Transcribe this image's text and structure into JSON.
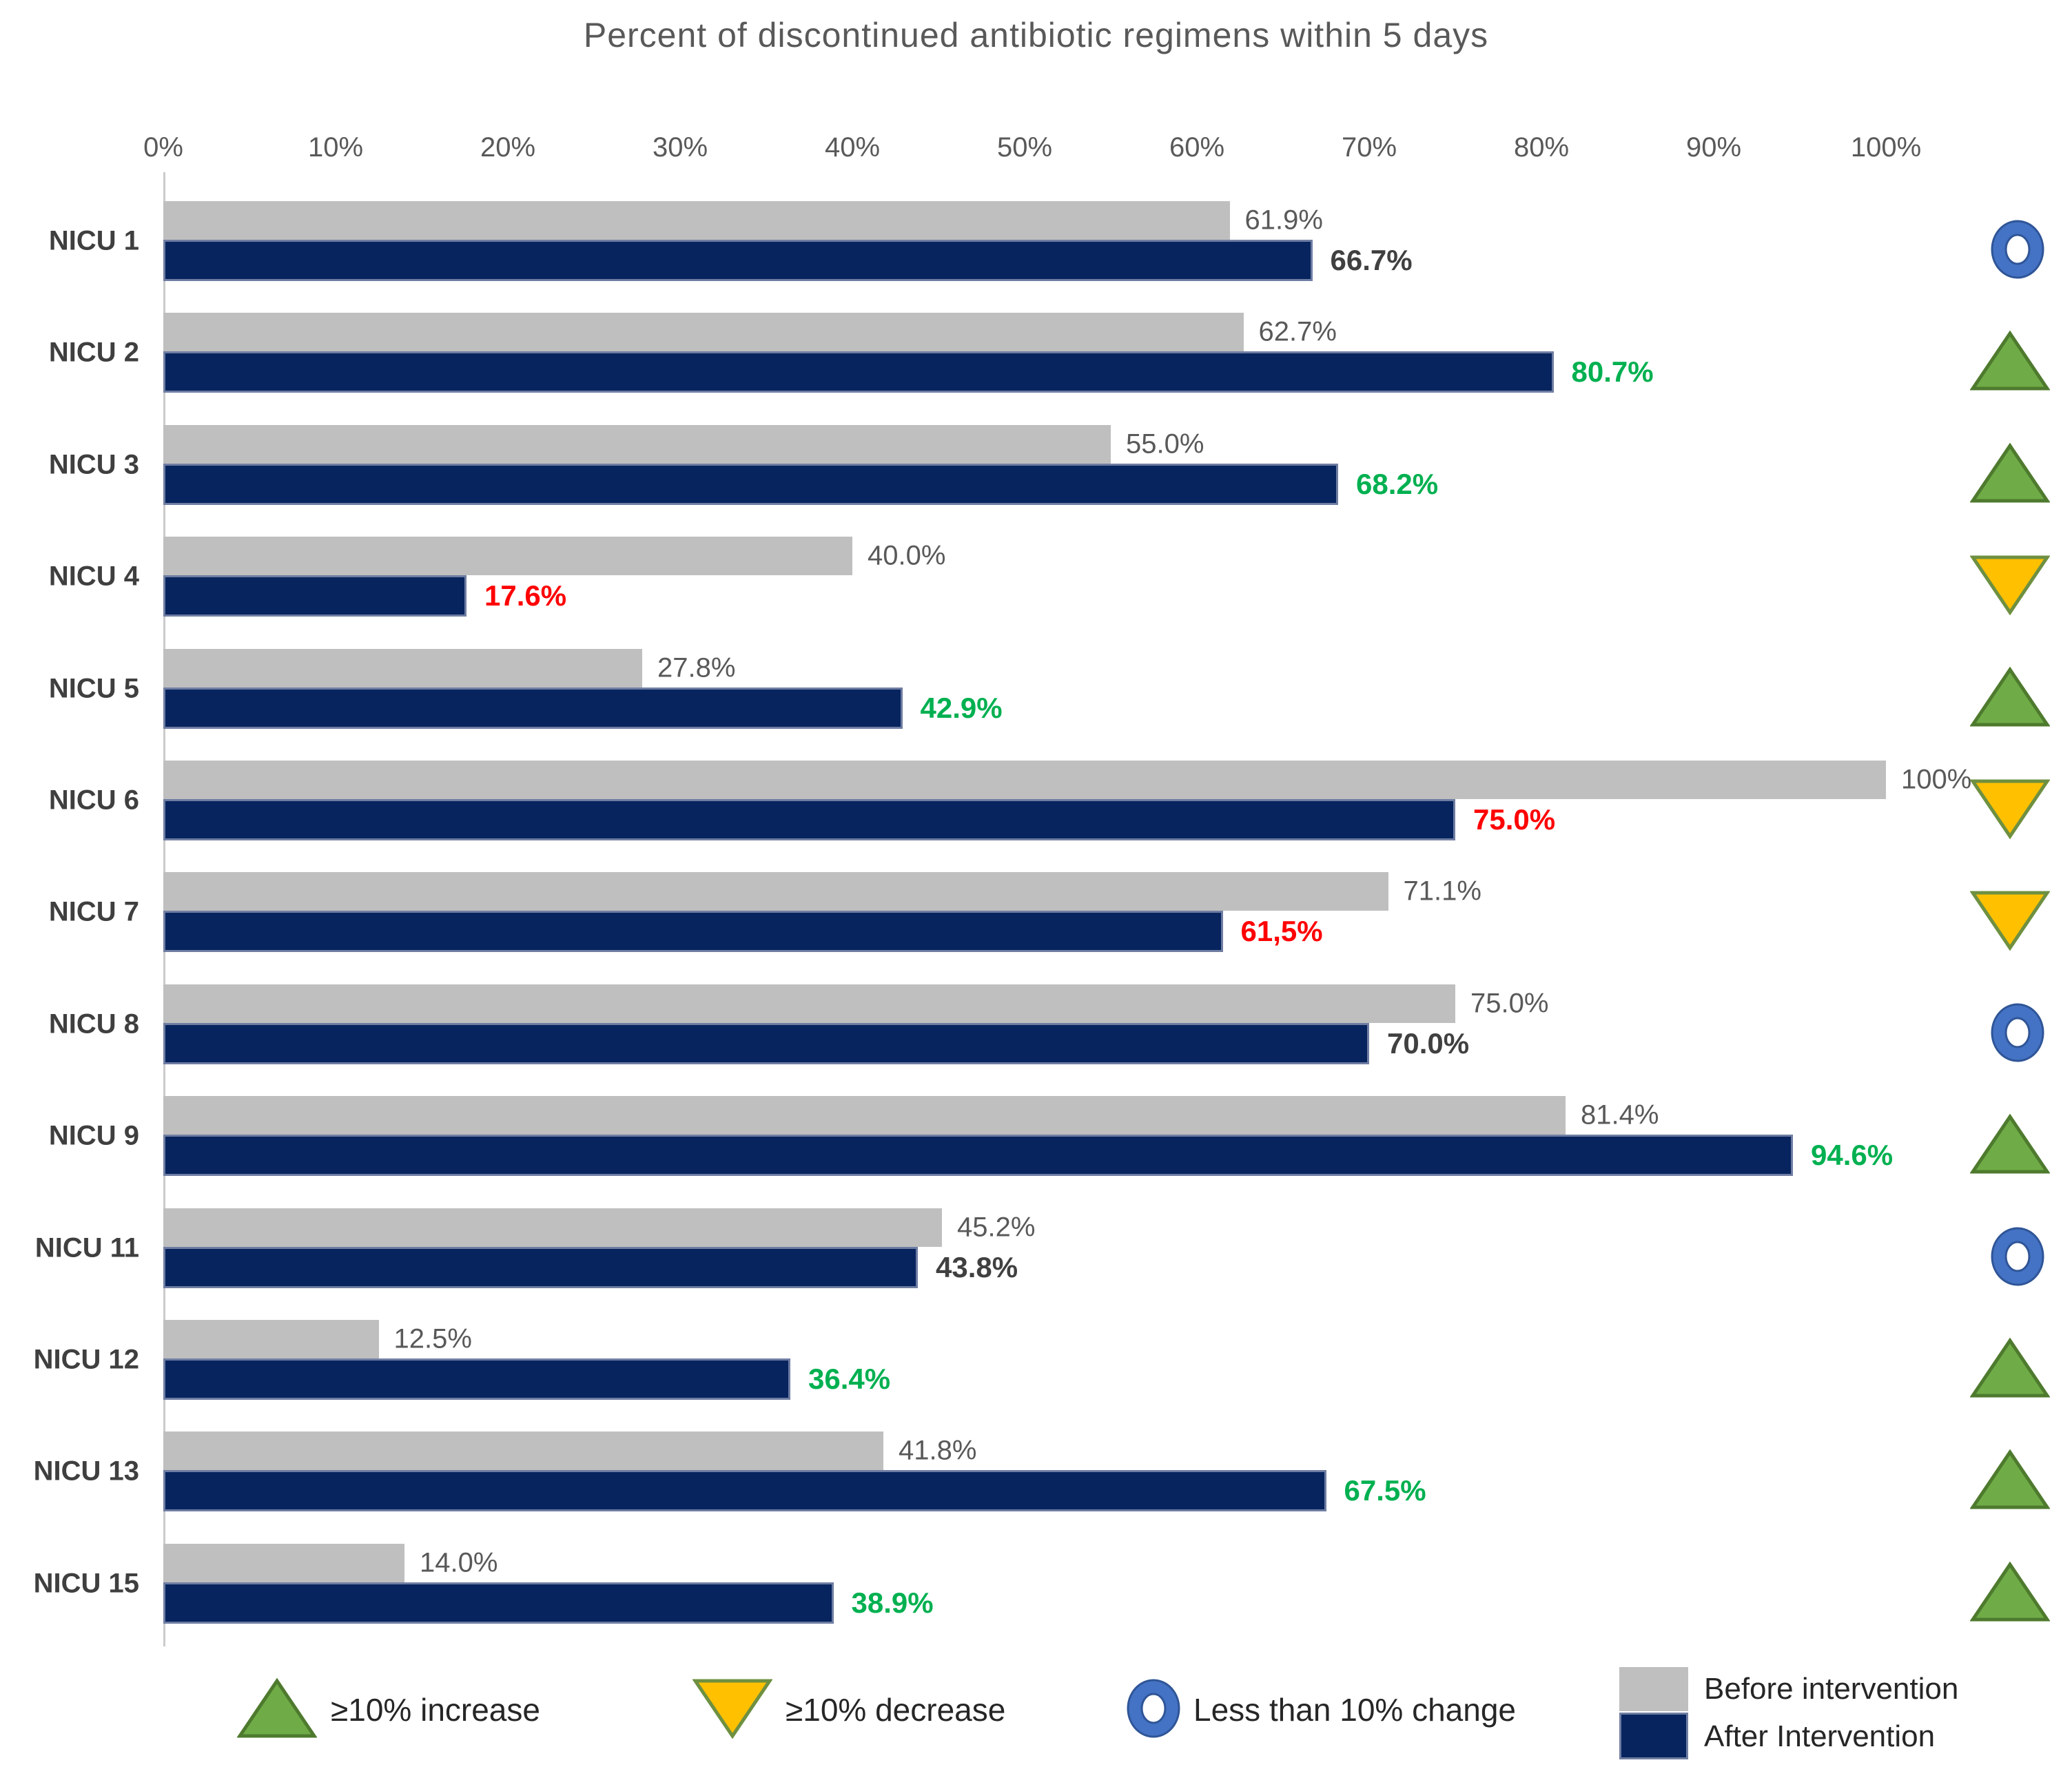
{
  "title": "Percent of discontinued antibiotic regimens within 5 days",
  "chart_data": {
    "type": "bar",
    "orientation": "horizontal",
    "unit": "percent",
    "x_axis": {
      "ticks": [
        "0%",
        "10%",
        "20%",
        "30%",
        "40%",
        "50%",
        "60%",
        "70%",
        "80%",
        "90%",
        "100%"
      ],
      "range": [
        0,
        100
      ],
      "grid": false
    },
    "series": [
      "Before intervention",
      "After Intervention"
    ],
    "rows": [
      {
        "label": "NICU 1",
        "before": 61.9,
        "after": 66.7,
        "before_text": "61.9%",
        "after_text": "66.7%",
        "change": "no_change"
      },
      {
        "label": "NICU 2",
        "before": 62.7,
        "after": 80.7,
        "before_text": "62.7%",
        "after_text": "80.7%",
        "change": "increase"
      },
      {
        "label": "NICU 3",
        "before": 55.0,
        "after": 68.2,
        "before_text": "55.0%",
        "after_text": "68.2%",
        "change": "increase"
      },
      {
        "label": "NICU 4",
        "before": 40.0,
        "after": 17.6,
        "before_text": "40.0%",
        "after_text": "17.6%",
        "change": "decrease"
      },
      {
        "label": "NICU 5",
        "before": 27.8,
        "after": 42.9,
        "before_text": "27.8%",
        "after_text": "42.9%",
        "change": "increase"
      },
      {
        "label": "NICU 6",
        "before": 100,
        "after": 75.0,
        "before_text": "100%",
        "after_text": "75.0%",
        "change": "decrease"
      },
      {
        "label": "NICU 7",
        "before": 71.1,
        "after": 61.5,
        "before_text": "71.1%",
        "after_text": "61,5%",
        "change": "decrease"
      },
      {
        "label": "NICU 8",
        "before": 75.0,
        "after": 70.0,
        "before_text": "75.0%",
        "after_text": "70.0%",
        "change": "no_change"
      },
      {
        "label": "NICU 9",
        "before": 81.4,
        "after": 94.6,
        "before_text": "81.4%",
        "after_text": "94.6%",
        "change": "increase"
      },
      {
        "label": "NICU 11",
        "before": 45.2,
        "after": 43.8,
        "before_text": "45.2%",
        "after_text": "43.8%",
        "change": "no_change"
      },
      {
        "label": "NICU 12",
        "before": 12.5,
        "after": 36.4,
        "before_text": "12.5%",
        "after_text": "36.4%",
        "change": "increase"
      },
      {
        "label": "NICU 13",
        "before": 41.8,
        "after": 67.5,
        "before_text": "41.8%",
        "after_text": "67.5%",
        "change": "increase"
      },
      {
        "label": "NICU 15",
        "before": 14.0,
        "after": 38.9,
        "before_text": "14.0%",
        "after_text": "38.9%",
        "change": "increase"
      }
    ]
  },
  "legend": {
    "increase": "≥10% increase",
    "decrease": "≥10% decrease",
    "no_change": "Less than 10% change",
    "before": "Before intervention",
    "after": "After Intervention"
  },
  "colors": {
    "before_bar": "#BFBFBF",
    "after_bar": "#07245F",
    "increase_text": "#00B050",
    "decrease_text": "#FF0000",
    "no_change_text": "#404040",
    "axis_text": "#595959",
    "increase_icon_fill": "#6FAC47",
    "increase_icon_stroke": "#4E7A2E",
    "decrease_icon_fill": "#FFC000",
    "decrease_icon_stroke": "#6E9041",
    "no_change_icon_stroke": "#4472C4",
    "no_change_icon_edge": "#2F5597"
  }
}
